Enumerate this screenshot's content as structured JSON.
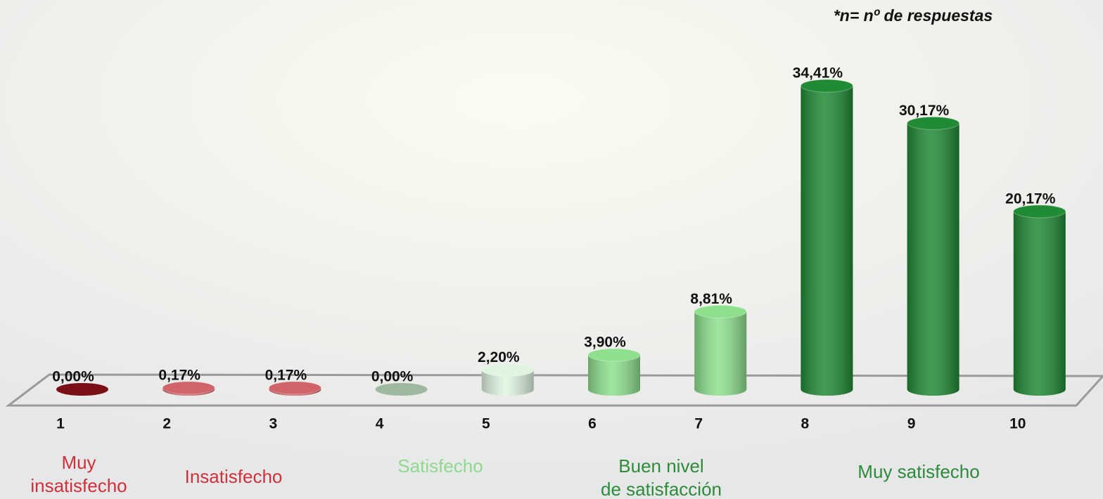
{
  "chart_data": {
    "type": "bar3d",
    "annotation": "*n= nº de respuestas",
    "categories": [
      "1",
      "2",
      "3",
      "4",
      "5",
      "6",
      "7",
      "8",
      "9",
      "10"
    ],
    "values": [
      0,
      0.17,
      0.17,
      0,
      2.2,
      3.9,
      8.81,
      34.41,
      30.17,
      20.17
    ],
    "value_labels": [
      "0,00%",
      "0,17%",
      "0,17%",
      "0,00%",
      "2,20%",
      "3,90%",
      "8,81%",
      "34,41%",
      "30,17%",
      "20,17%"
    ],
    "colors": [
      "#7a0f17",
      "#d0646a",
      "#d0646a",
      "#9fb9a0",
      "#dff5e0",
      "#8ee08e",
      "#8ee08e",
      "#208a35",
      "#208a35",
      "#208a35"
    ],
    "groups": [
      {
        "lines": [
          "Muy",
          "insatisfecho"
        ],
        "color": "#d1303a"
      },
      {
        "lines": [
          "Insatisfecho"
        ],
        "color": "#d1303a"
      },
      {
        "lines": [
          "Satisfecho"
        ],
        "color": "#8fd98f"
      },
      {
        "lines": [
          "Buen nivel",
          "de satisfacción"
        ],
        "color": "#2e8b3a"
      },
      {
        "lines": [
          "Muy satisfecho"
        ],
        "color": "#2e8b3a"
      }
    ]
  }
}
